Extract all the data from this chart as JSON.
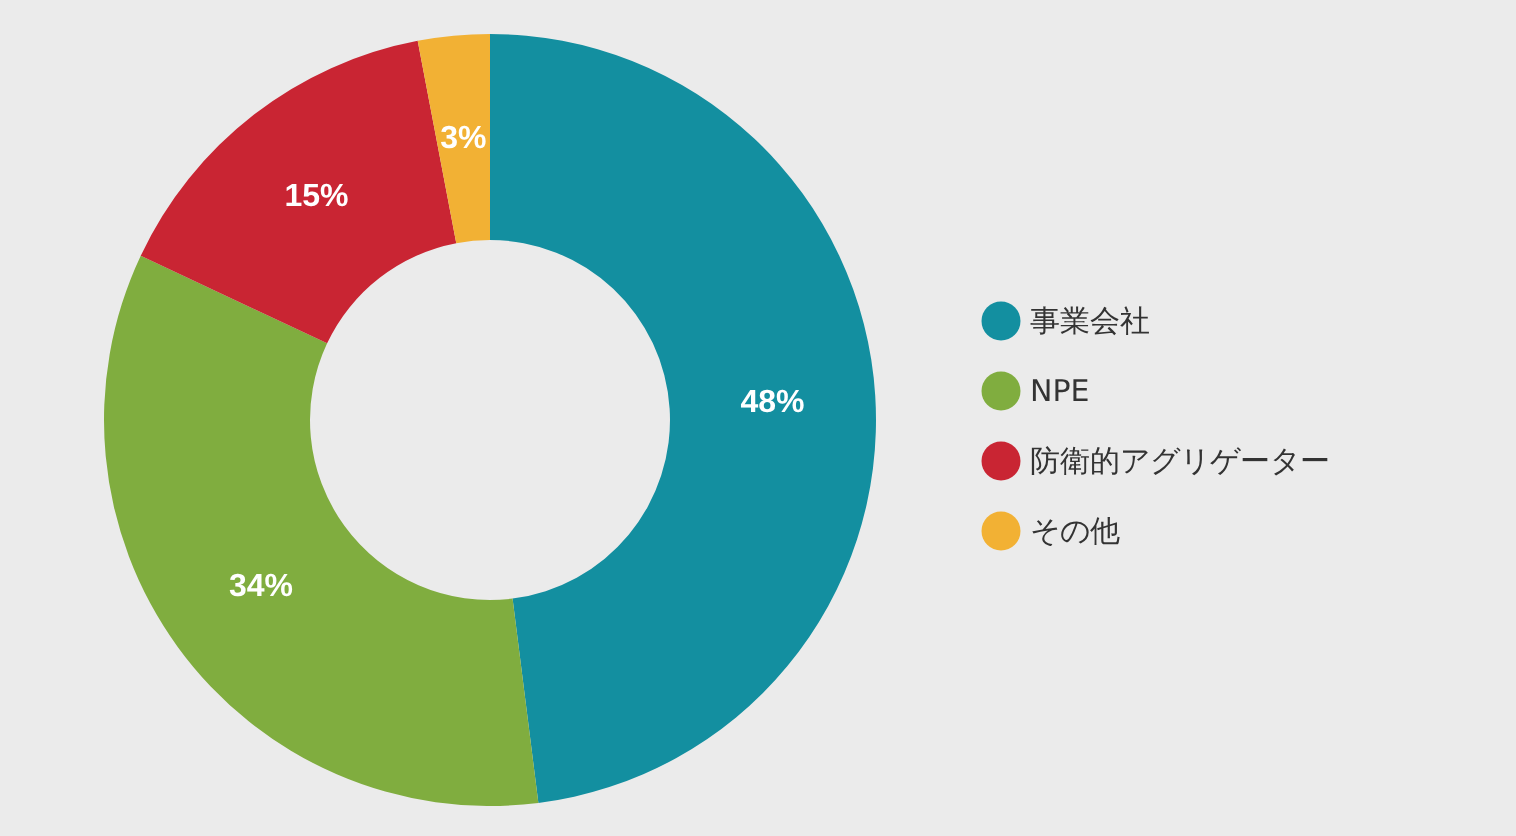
{
  "chart_data": {
    "type": "donut",
    "categories": [
      "事業会社",
      "NPE",
      "防衛的アグリゲーター",
      "その他"
    ],
    "values": [
      48,
      34,
      15,
      3
    ],
    "colors": [
      "#138fa0",
      "#80ad3f",
      "#c92533",
      "#f2b134"
    ],
    "value_labels": [
      "48%",
      "34%",
      "15%",
      "3%"
    ],
    "legend": "right"
  }
}
